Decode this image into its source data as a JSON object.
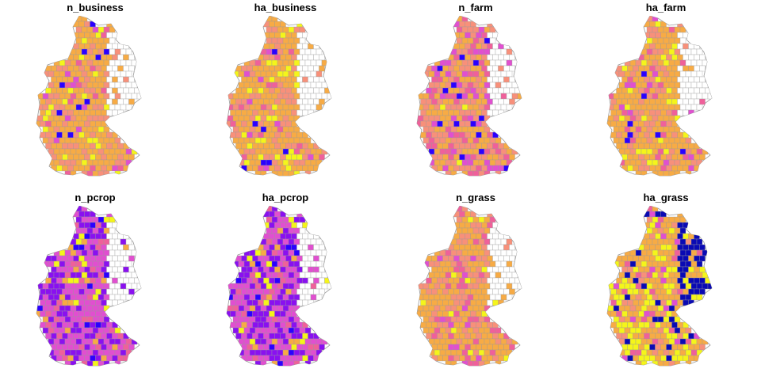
{
  "palette": {
    "dark_blue": "#0a0ab4",
    "blue": "#2b00ff",
    "violet": "#8a10f0",
    "magenta": "#e14fd0",
    "pink": "#f0609a",
    "salmon": "#f8907a",
    "orange": "#f7ab45",
    "yellow": "#f5f51a",
    "no_data": "#ffffff",
    "border": "#9a9a9a"
  },
  "panels": [
    {
      "title": "n_business",
      "base": "orange",
      "weights": {
        "orange": 0.55,
        "salmon": 0.25,
        "yellow": 0.08,
        "pink": 0.07,
        "magenta": 0.03,
        "blue": 0.02
      }
    },
    {
      "title": "ha_business",
      "base": "orange",
      "weights": {
        "orange": 0.55,
        "salmon": 0.22,
        "yellow": 0.12,
        "pink": 0.06,
        "magenta": 0.03,
        "blue": 0.02
      }
    },
    {
      "title": "n_farm",
      "base": "salmon",
      "weights": {
        "salmon": 0.35,
        "orange": 0.3,
        "pink": 0.15,
        "magenta": 0.12,
        "blue": 0.05,
        "yellow": 0.03
      }
    },
    {
      "title": "ha_farm",
      "base": "orange",
      "weights": {
        "orange": 0.55,
        "salmon": 0.22,
        "yellow": 0.1,
        "pink": 0.08,
        "magenta": 0.03,
        "blue": 0.02
      }
    },
    {
      "title": "n_pcrop",
      "base": "magenta",
      "weights": {
        "magenta": 0.45,
        "violet": 0.3,
        "pink": 0.1,
        "orange": 0.05,
        "blue": 0.05,
        "yellow": 0.05
      }
    },
    {
      "title": "ha_pcrop",
      "base": "magenta",
      "weights": {
        "magenta": 0.42,
        "violet": 0.32,
        "pink": 0.1,
        "orange": 0.05,
        "blue": 0.06,
        "yellow": 0.05
      }
    },
    {
      "title": "n_grass",
      "base": "orange",
      "weights": {
        "orange": 0.6,
        "salmon": 0.25,
        "pink": 0.1,
        "magenta": 0.03,
        "yellow": 0.02
      }
    },
    {
      "title": "ha_grass",
      "base": "orange",
      "weights": {
        "orange": 0.4,
        "yellow": 0.3,
        "salmon": 0.12,
        "dark_blue": 0.1,
        "pink": 0.05,
        "magenta": 0.03
      }
    }
  ]
}
